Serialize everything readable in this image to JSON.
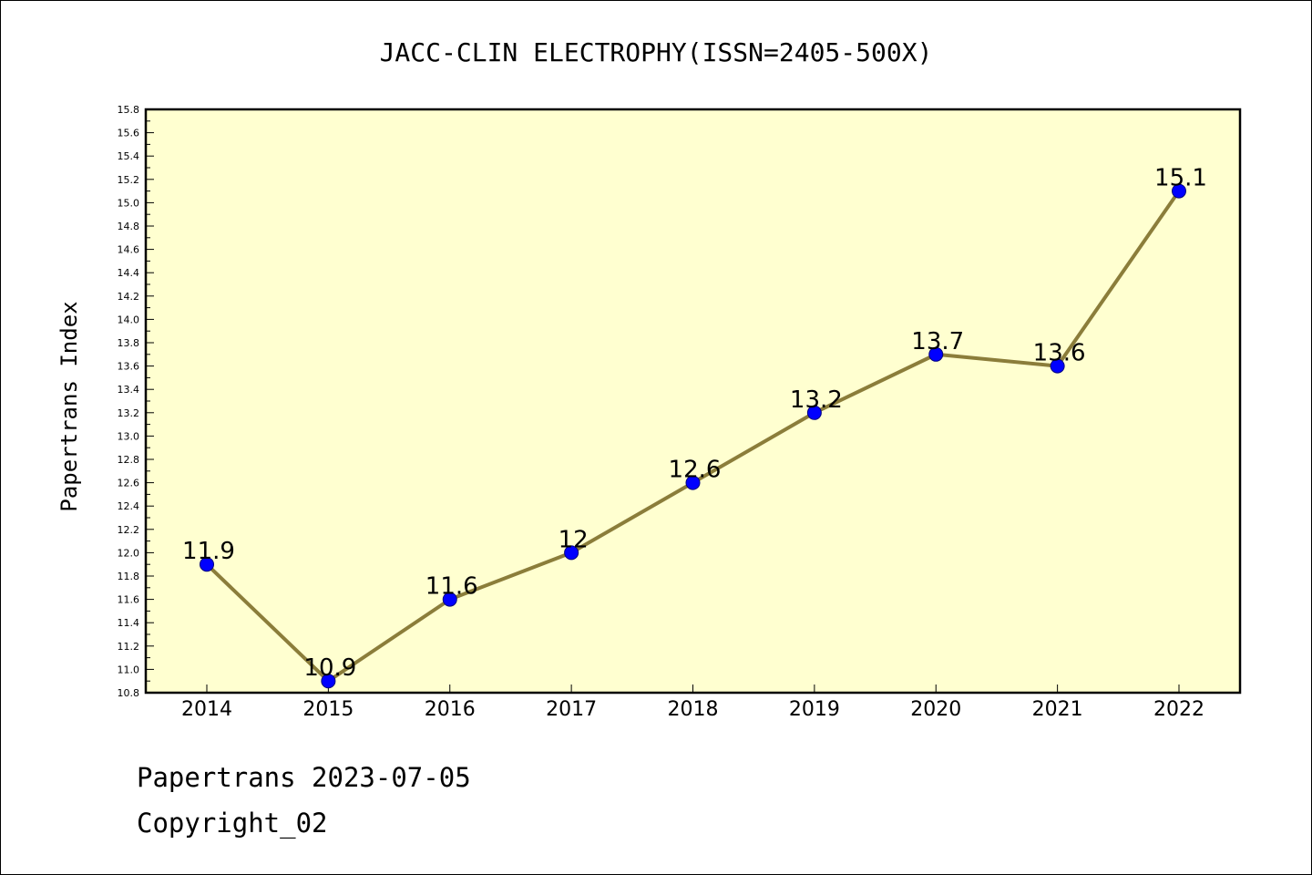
{
  "chart_data": {
    "type": "line",
    "title": "JACC-CLIN ELECTROPHY(ISSN=2405-500X)",
    "xlabel": "",
    "ylabel": "Papertrans Index",
    "categories": [
      "2014",
      "2015",
      "2016",
      "2017",
      "2018",
      "2019",
      "2020",
      "2021",
      "2022"
    ],
    "series": [
      {
        "values": [
          11.9,
          10.9,
          11.6,
          12.0,
          12.6,
          13.2,
          13.7,
          13.6,
          15.1
        ],
        "data_labels": [
          "11.9",
          "10.9",
          "11.6",
          "12",
          "12.6",
          "13.2",
          "13.7",
          "13.6",
          "15.1"
        ]
      }
    ],
    "ylim": [
      10.8,
      15.8
    ],
    "y_ticks": [
      "10.8",
      "11.0",
      "11.2",
      "11.4",
      "11.6",
      "11.8",
      "12.0",
      "12.2",
      "12.4",
      "12.6",
      "12.8",
      "13.0",
      "13.2",
      "13.4",
      "13.6",
      "13.8",
      "14.0",
      "14.2",
      "14.4",
      "14.6",
      "14.8",
      "15.0",
      "15.2",
      "15.4",
      "15.6",
      "15.8"
    ],
    "grid": false,
    "legend": "none",
    "colors": {
      "plot_background": "#ffffd0",
      "line": "#8b7d3a",
      "marker_fill": "#0000ff",
      "marker_edge": "#000080"
    }
  },
  "footer": {
    "line1": "Papertrans 2023-07-05",
    "line2": "Copyright_02"
  }
}
